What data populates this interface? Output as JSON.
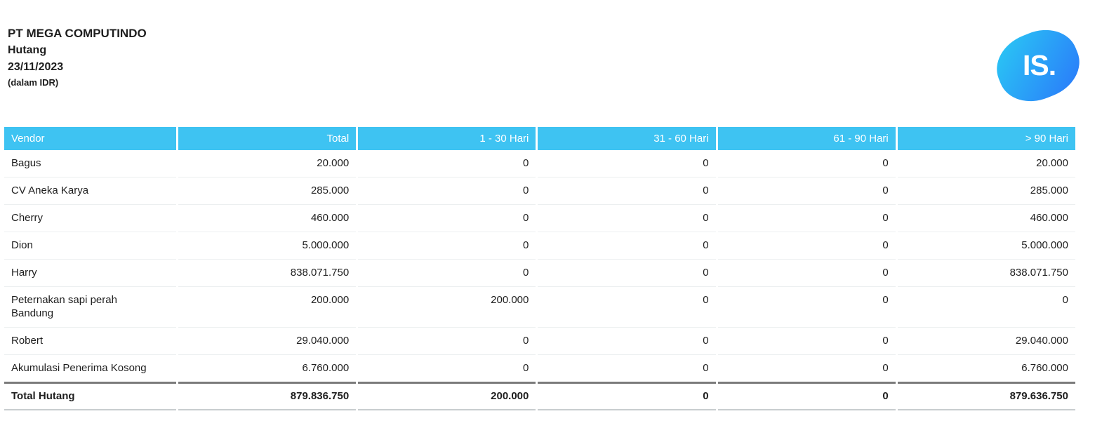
{
  "header": {
    "company": "PT MEGA COMPUTINDO",
    "report_title": "Hutang",
    "date": "23/11/2023",
    "currency_note": "(dalam IDR)",
    "logo_text": "IS."
  },
  "colors": {
    "table_header_bg": "#3EC3F2",
    "table_header_text": "#FFFFFF",
    "row_separator": "#ECEFF0",
    "total_top_border": "#7B7B7B",
    "total_bottom_border": "#C9CDCF",
    "logo_gradient_start": "#2AC7F4",
    "logo_gradient_end": "#2A7BFA"
  },
  "table": {
    "columns": [
      "Vendor",
      "Total",
      "1 - 30 Hari",
      "31 - 60 Hari",
      "61 - 90 Hari",
      "> 90 Hari"
    ],
    "rows": [
      {
        "vendor": "Bagus",
        "values": [
          "20.000",
          "0",
          "0",
          "0",
          "20.000"
        ]
      },
      {
        "vendor": "CV Aneka Karya",
        "values": [
          "285.000",
          "0",
          "0",
          "0",
          "285.000"
        ]
      },
      {
        "vendor": "Cherry",
        "values": [
          "460.000",
          "0",
          "0",
          "0",
          "460.000"
        ]
      },
      {
        "vendor": "Dion",
        "values": [
          "5.000.000",
          "0",
          "0",
          "0",
          "5.000.000"
        ]
      },
      {
        "vendor": "Harry",
        "values": [
          "838.071.750",
          "0",
          "0",
          "0",
          "838.071.750"
        ]
      },
      {
        "vendor": "Peternakan sapi perah Bandung",
        "values": [
          "200.000",
          "200.000",
          "0",
          "0",
          "0"
        ]
      },
      {
        "vendor": "Robert",
        "values": [
          "29.040.000",
          "0",
          "0",
          "0",
          "29.040.000"
        ]
      },
      {
        "vendor": "Akumulasi Penerima Kosong",
        "values": [
          "6.760.000",
          "0",
          "0",
          "0",
          "6.760.000"
        ]
      }
    ],
    "total_row": {
      "label": "Total Hutang",
      "values": [
        "879.836.750",
        "200.000",
        "0",
        "0",
        "879.636.750"
      ]
    }
  }
}
